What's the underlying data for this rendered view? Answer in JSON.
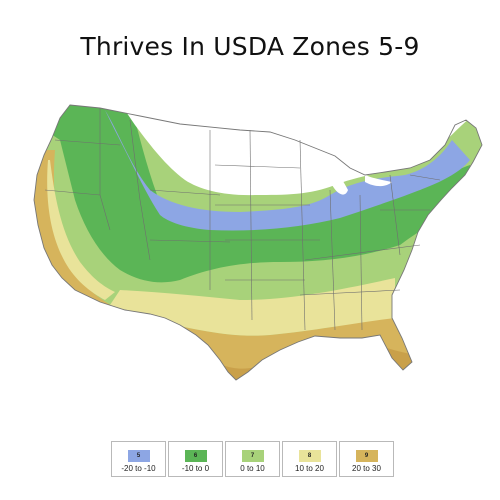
{
  "title": "Thrives In USDA Zones 5-9",
  "map": {
    "region_name": "Contiguous United States",
    "state_border_color": "#6f6f6f",
    "water_color": "#ffffff"
  },
  "legend": [
    {
      "zone": "5",
      "range": "-20 to -10",
      "color": "#8da6e4"
    },
    {
      "zone": "6",
      "range": "-10 to 0",
      "color": "#5bb556"
    },
    {
      "zone": "7",
      "range": "0 to 10",
      "color": "#a8d27a"
    },
    {
      "zone": "8",
      "range": "10 to 20",
      "color": "#e9e39a"
    },
    {
      "zone": "9",
      "range": "20 to 30",
      "color": "#d6b45c"
    }
  ],
  "colors": {
    "zone_cold": "#ffffff",
    "zone_5": "#8da6e4",
    "zone_6": "#5bb556",
    "zone_7": "#a8d27a",
    "zone_8": "#e9e39a",
    "zone_9": "#d6b45c",
    "zone_10": "#c9a04a"
  }
}
